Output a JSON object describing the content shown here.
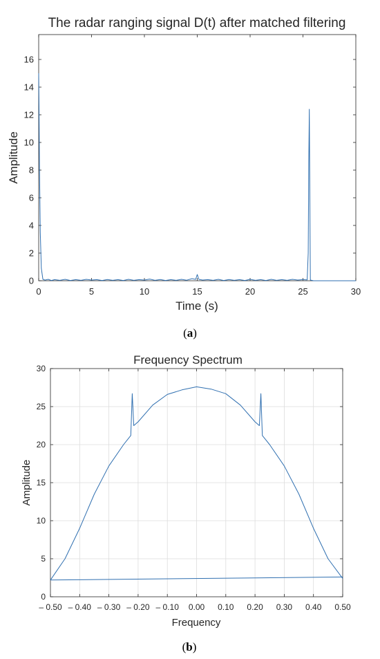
{
  "figures": [
    {
      "caption_letter": "a",
      "chart_data": {
        "type": "line",
        "title": "The radar ranging signal D(t) after matched filtering",
        "xlabel": "Time (s)",
        "ylabel": "Amplitude",
        "xlim": [
          0,
          30
        ],
        "ylim": [
          0,
          17.8
        ],
        "xticks": [
          0,
          5,
          10,
          15,
          20,
          25,
          30
        ],
        "xtick_labels": [
          "0",
          "5",
          "10",
          "15",
          "20",
          "25",
          "30"
        ],
        "yticks": [
          0,
          2,
          4,
          6,
          8,
          10,
          12,
          14,
          16
        ],
        "ytick_labels": [
          "0",
          "2",
          "4",
          "6",
          "8",
          "10",
          "12",
          "14",
          "16"
        ],
        "grid": false,
        "line_color": "#2f6fb0",
        "series": [
          {
            "x": [
              0,
              0.03,
              0.08,
              0.15,
              0.25,
              0.4,
              0.6,
              0.9,
              1.2,
              1.5,
              2,
              2.5,
              3,
              3.5,
              4,
              4.5,
              5,
              5.5,
              6,
              6.5,
              7,
              7.5,
              8,
              8.5,
              9,
              9.5,
              10,
              10.5,
              11,
              11.5,
              12,
              12.5,
              13,
              13.5,
              14,
              14.5,
              14.85,
              15,
              15.15,
              15.5,
              16,
              16.5,
              17,
              17.5,
              18,
              18.5,
              19,
              19.5,
              20,
              20.5,
              21,
              21.5,
              22,
              22.5,
              23,
              23.5,
              24,
              24.5,
              25,
              25.4,
              25.5,
              25.55,
              25.6,
              25.7,
              26,
              27,
              28,
              29,
              30
            ],
            "y": [
              15.0,
              12.5,
              8.0,
              3.5,
              0.9,
              0.1,
              0.05,
              0.1,
              0.02,
              0.08,
              0.03,
              0.1,
              0.02,
              0.08,
              0.03,
              0.1,
              0.05,
              0.08,
              0.02,
              0.09,
              0.03,
              0.08,
              0.02,
              0.1,
              0.03,
              0.08,
              0.05,
              0.12,
              0.03,
              0.09,
              0.02,
              0.08,
              0.03,
              0.1,
              0.04,
              0.15,
              0.1,
              0.45,
              0.1,
              0.05,
              0.08,
              0.03,
              0.1,
              0.02,
              0.09,
              0.03,
              0.08,
              0.02,
              0.1,
              0.03,
              0.08,
              0.02,
              0.1,
              0.03,
              0.08,
              0.03,
              0.1,
              0.05,
              0.08,
              0.06,
              2.0,
              8.5,
              12.4,
              0.05,
              0.0,
              0.0,
              0.0,
              0.0,
              0.0
            ]
          }
        ]
      }
    },
    {
      "caption_letter": "b",
      "chart_data": {
        "type": "line",
        "title": "Frequency Spectrum",
        "xlabel": "Frequency",
        "ylabel": "Amplitude",
        "xlim": [
          -0.5,
          0.5
        ],
        "ylim": [
          0,
          30
        ],
        "xticks": [
          -0.5,
          -0.4,
          -0.3,
          -0.2,
          -0.1,
          0,
          0.1,
          0.2,
          0.3,
          0.4,
          0.5
        ],
        "xtick_labels": [
          "– 0.50",
          "– 0.40",
          "– 0.30",
          "– 0.20",
          "– 0.10",
          "0.00",
          "0.10",
          "0.20",
          "0.30",
          "0.40",
          "0.50"
        ],
        "yticks": [
          0,
          5,
          10,
          15,
          20,
          25,
          30
        ],
        "ytick_labels": [
          "0",
          "5",
          "10",
          "15",
          "20",
          "25",
          "30"
        ],
        "grid": true,
        "line_color": "#2f6fb0",
        "series": [
          {
            "x": [
              -0.5,
              -0.45,
              -0.4,
              -0.35,
              -0.3,
              -0.25,
              -0.225,
              -0.22,
              -0.215,
              -0.2,
              -0.15,
              -0.1,
              -0.05,
              0,
              0.05,
              0.1,
              0.15,
              0.2,
              0.215,
              0.22,
              0.225,
              0.25,
              0.3,
              0.35,
              0.4,
              0.45,
              0.5
            ],
            "y": [
              2.2,
              5.0,
              9.0,
              13.5,
              17.2,
              20.0,
              21.2,
              26.7,
              22.5,
              23.0,
              25.2,
              26.6,
              27.2,
              27.6,
              27.3,
              26.7,
              25.2,
              23.0,
              22.5,
              26.7,
              21.2,
              20.0,
              17.2,
              13.5,
              9.0,
              5.0,
              2.4
            ]
          },
          {
            "x": [
              -0.5,
              0.5
            ],
            "y": [
              2.2,
              2.6
            ]
          }
        ]
      }
    }
  ]
}
